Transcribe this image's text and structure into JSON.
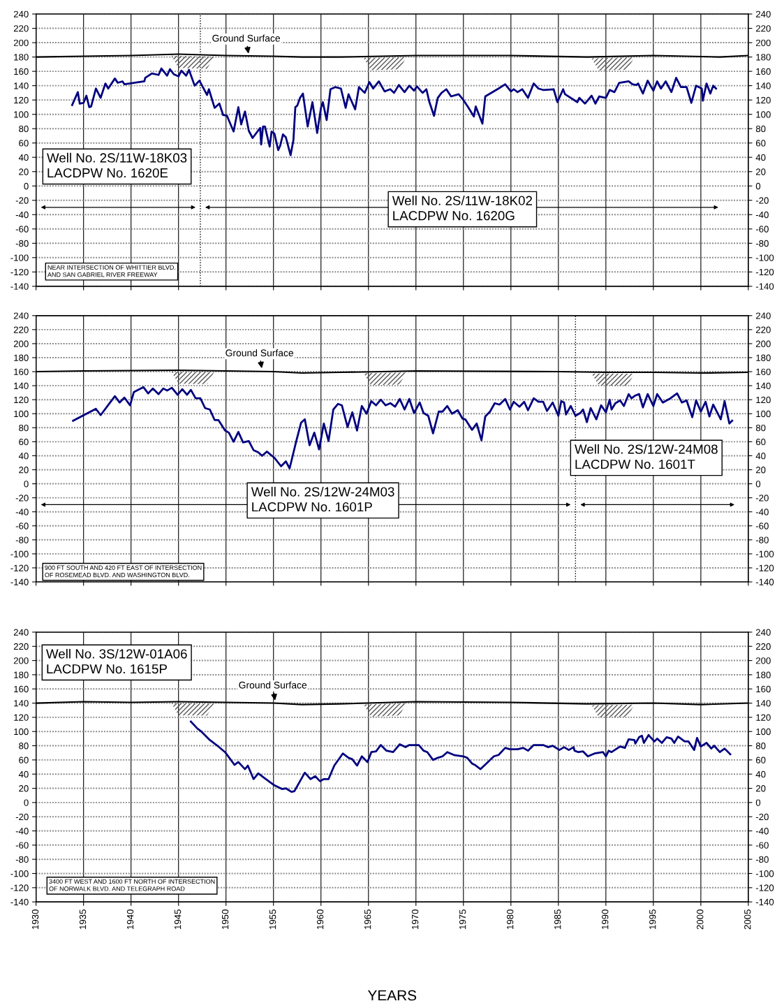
{
  "chart_data": [
    {
      "type": "line",
      "xlim": [
        1930,
        2005
      ],
      "xticks": [
        1930,
        1935,
        1940,
        1945,
        1950,
        1955,
        1960,
        1965,
        1970,
        1975,
        1980,
        1985,
        1990,
        1995,
        2000,
        2005
      ],
      "ylim": [
        -140,
        240
      ],
      "yticks": [
        -140,
        -120,
        -100,
        -80,
        -60,
        -40,
        -20,
        0,
        20,
        40,
        60,
        80,
        100,
        120,
        140,
        160,
        180,
        200,
        220,
        240
      ],
      "y2lim": [
        -140,
        240
      ],
      "y2ticks": [
        -140,
        -120,
        -100,
        -80,
        -60,
        -40,
        -20,
        0,
        20,
        40,
        60,
        80,
        100,
        120,
        140,
        160,
        180,
        200,
        220,
        240
      ],
      "grid": true,
      "tick_labels": "y",
      "marker": "none",
      "line_style": "solid",
      "series": [
        {
          "color": "#000080",
          "x": [
            1933.8,
            1934.4,
            1934.6,
            1935.0,
            1935.3,
            1935.6,
            1935.8,
            1936.3,
            1936.8,
            1937.3,
            1937.6,
            1938.3,
            1938.6,
            1939.1,
            1939.3,
            1941.4,
            1941.5,
            1942.2,
            1942.9,
            1943.2,
            1943.8,
            1944.1,
            1944.5,
            1945.0,
            1945.3,
            1945.8,
            1946.1,
            1946.7,
            1947.2,
            1948.0,
            1948.2,
            1948.8,
            1949.3,
            1949.7,
            1950.1,
            1950.8,
            1951.3,
            1951.6,
            1952.0,
            1952.4,
            1952.8,
            1953.6,
            1953.7,
            1953.9,
            1954.1,
            1954.6,
            1954.8,
            1955.1,
            1955.5,
            1955.7,
            1956.0,
            1956.3,
            1956.8,
            1957.1,
            1957.3,
            1957.5,
            1957.8,
            1958.1,
            1958.6,
            1959.1,
            1959.6,
            1960.0,
            1960.2,
            1960.6,
            1961.0,
            1961.5,
            1962.1,
            1962.6,
            1962.9,
            1963.6,
            1964.0,
            1964.6,
            1965.1,
            1965.5,
            1966.1,
            1966.7,
            1967.3,
            1967.7,
            1968.2,
            1968.8,
            1969.3,
            1969.8,
            1970.1,
            1970.7,
            1971.1,
            1971.4,
            1971.9,
            1972.3,
            1972.7,
            1973.2,
            1973.7,
            1974.5,
            1975.0,
            1975.5,
            1976.1,
            1976.3,
            1977.0,
            1977.3,
            1978.7,
            1979.4,
            1980.0,
            1980.3,
            1980.7,
            1981.2,
            1981.8,
            1982.4,
            1982.9,
            1983.4,
            1984.5,
            1984.9,
            1985.5,
            1985.7,
            1987.0,
            1987.2,
            1987.8,
            1988.5,
            1988.9,
            1989.3,
            1990.0,
            1990.4,
            1990.9,
            1991.4,
            1992.4,
            1992.8,
            1993.2,
            1993.4,
            1993.9,
            1994.4,
            1995.0,
            1995.4,
            1995.8,
            1996.3,
            1996.9,
            1997.4,
            1997.9,
            1998.5,
            1999.0,
            1999.5,
            2000.1,
            2000.2,
            2000.6,
            2001.0,
            2001.3,
            2001.6
          ],
          "values": [
            113,
            131,
            115,
            116,
            126,
            110,
            111,
            136,
            123,
            143,
            136,
            150,
            144,
            146,
            142,
            146,
            151,
            157,
            155,
            164,
            154,
            163,
            156,
            153,
            161,
            154,
            162,
            140,
            147,
            127,
            135,
            109,
            115,
            99,
            98,
            76,
            110,
            86,
            104,
            77,
            67,
            81,
            58,
            83,
            83,
            55,
            76,
            73,
            50,
            56,
            72,
            68,
            43,
            64,
            110,
            112,
            123,
            129,
            83,
            117,
            74,
            109,
            117,
            92,
            135,
            138,
            136,
            109,
            128,
            107,
            138,
            130,
            145,
            136,
            146,
            132,
            135,
            130,
            141,
            131,
            140,
            133,
            139,
            130,
            135,
            118,
            98,
            123,
            130,
            135,
            125,
            128,
            120,
            110,
            97,
            111,
            87,
            125,
            136,
            142,
            132,
            135,
            131,
            135,
            123,
            143,
            136,
            134,
            135,
            117,
            135,
            128,
            117,
            123,
            115,
            126,
            115,
            125,
            123,
            134,
            131,
            144,
            146,
            142,
            141,
            143,
            129,
            147,
            133,
            146,
            136,
            146,
            131,
            151,
            138,
            138,
            116,
            140,
            136,
            119,
            143,
            129,
            140,
            136
          ]
        },
        {
          "color": "#000000",
          "x": [
            1930,
            1935,
            1940,
            1945,
            1950,
            1955,
            1958,
            1962,
            1970,
            1980,
            1988,
            1995,
            2002,
            2005
          ],
          "values": [
            180,
            181,
            182,
            184,
            182,
            181,
            180,
            180,
            182,
            182,
            180,
            182,
            180,
            182
          ]
        }
      ],
      "ref_lines": [
        {
          "axis": "x",
          "value": 1947.3,
          "line_style": "dotted",
          "color": "#000000"
        }
      ],
      "annotations": [
        "Well No. 2S/11W-18K03\nLACDPW No. 1620E",
        "Well No. 2S/11W-18K02\nLACDPW No. 1620G",
        "NEAR INTERSECTION OF WHITTIER BLVD.\nAND SAN GABRIEL RIVER FREEWAY",
        {
          "text": "Ground Surface",
          "x": 1952.4,
          "y": 182
        }
      ]
    },
    {
      "type": "line",
      "xlim": [
        1930,
        2005
      ],
      "xticks": [
        1930,
        1935,
        1940,
        1945,
        1950,
        1955,
        1960,
        1965,
        1970,
        1975,
        1980,
        1985,
        1990,
        1995,
        2000,
        2005
      ],
      "ylim": [
        -140,
        240
      ],
      "yticks": [
        -140,
        -120,
        -100,
        -80,
        -60,
        -40,
        -20,
        0,
        20,
        40,
        60,
        80,
        100,
        120,
        140,
        160,
        180,
        200,
        220,
        240
      ],
      "y2lim": [
        -140,
        240
      ],
      "y2ticks": [
        -140,
        -120,
        -100,
        -80,
        -60,
        -40,
        -20,
        0,
        20,
        40,
        60,
        80,
        100,
        120,
        140,
        160,
        180,
        200,
        220,
        240
      ],
      "grid": true,
      "tick_labels": "y",
      "marker": "none",
      "line_style": "solid",
      "series": [
        {
          "color": "#000080",
          "x": [
            1933.9,
            1936.3,
            1936.8,
            1938.3,
            1938.8,
            1939.3,
            1939.9,
            1940.3,
            1941.3,
            1941.8,
            1942.3,
            1942.9,
            1943.4,
            1943.8,
            1944.3,
            1944.9,
            1945.4,
            1945.9,
            1946.3,
            1946.8,
            1947.3,
            1947.8,
            1948.3,
            1948.8,
            1949.2,
            1949.9,
            1950.3,
            1950.8,
            1951.3,
            1951.8,
            1952.4,
            1952.9,
            1953.4,
            1953.8,
            1954.3,
            1955.1,
            1955.8,
            1956.3,
            1956.7,
            1957.4,
            1957.9,
            1958.3,
            1958.8,
            1959.3,
            1959.8,
            1960.3,
            1960.8,
            1961.3,
            1961.8,
            1962.2,
            1962.8,
            1963.3,
            1963.8,
            1964.3,
            1964.8,
            1965.3,
            1965.8,
            1966.3,
            1966.8,
            1967.3,
            1967.8,
            1968.3,
            1968.8,
            1969.3,
            1969.8,
            1970.4,
            1970.8,
            1971.3,
            1971.8,
            1972.4,
            1972.8,
            1973.3,
            1973.8,
            1974.4,
            1974.9,
            1975.2,
            1975.9,
            1976.4,
            1976.9,
            1977.3,
            1977.8,
            1978.3,
            1978.8,
            1979.4,
            1979.9,
            1980.3,
            1980.9,
            1981.4,
            1981.8,
            1982.4,
            1982.9,
            1983.4,
            1983.8,
            1984.4,
            1985.0,
            1985.3,
            1985.6,
            1985.8,
            1986.3,
            1986.8,
            1987.3,
            1987.6,
            1988.0,
            1988.4,
            1989.0,
            1989.5,
            1990.0,
            1990.4,
            1990.6,
            1991.0,
            1991.5,
            1991.9,
            1992.4,
            1992.7,
            1993.1,
            1993.5,
            1993.9,
            1994.4,
            1995.0,
            1995.4,
            1996.0,
            1996.8,
            1997.5,
            1998.0,
            1998.5,
            1999.1,
            1999.5,
            2000.0,
            2000.5,
            2000.9,
            2001.3,
            2002.1,
            2002.5,
            2003.0,
            2003.3
          ],
          "values": [
            90,
            107,
            98,
            125,
            116,
            123,
            112,
            131,
            138,
            129,
            136,
            128,
            136,
            133,
            137,
            127,
            135,
            127,
            134,
            122,
            122,
            108,
            106,
            91,
            91,
            76,
            73,
            60,
            74,
            59,
            61,
            48,
            45,
            40,
            46,
            37,
            25,
            32,
            22,
            61,
            87,
            92,
            55,
            73,
            49,
            86,
            61,
            106,
            114,
            112,
            81,
            102,
            76,
            111,
            100,
            118,
            112,
            120,
            112,
            115,
            110,
            121,
            106,
            121,
            101,
            116,
            101,
            97,
            72,
            103,
            103,
            111,
            100,
            105,
            93,
            92,
            77,
            86,
            62,
            96,
            103,
            115,
            113,
            121,
            106,
            117,
            110,
            117,
            105,
            122,
            117,
            117,
            104,
            116,
            97,
            118,
            116,
            99,
            111,
            97,
            101,
            106,
            88,
            108,
            92,
            112,
            102,
            120,
            106,
            115,
            119,
            111,
            128,
            122,
            126,
            128,
            109,
            128,
            111,
            128,
            116,
            122,
            129,
            116,
            119,
            95,
            119,
            103,
            117,
            96,
            113,
            92,
            118,
            86,
            90
          ]
        },
        {
          "color": "#000000",
          "x": [
            1930,
            1935,
            1945,
            1950,
            1955,
            1958,
            1962,
            1970,
            1985,
            1990,
            1995,
            2000,
            2005
          ],
          "values": [
            160,
            161,
            162,
            161,
            160,
            158,
            159,
            161,
            160,
            159,
            159,
            158,
            159
          ]
        }
      ],
      "ref_lines": [
        {
          "axis": "x",
          "value": 1986.8,
          "line_style": "dotted",
          "color": "#000000"
        }
      ],
      "annotations": [
        "Well No. 2S/12W-24M08\nLACDPW No. 1601T",
        "Well No. 2S/12W-24M03\nLACDPW No. 1601P",
        "900 FT SOUTH AND 420 FT EAST OF INTERSECTION\nOF ROSEMEAD BLVD. AND WASHINGTON BLVD.",
        {
          "text": "Ground Surface",
          "x": 1953.8,
          "y": 162
        }
      ]
    },
    {
      "type": "line",
      "xlabel": "YEARS",
      "xlim": [
        1930,
        2005
      ],
      "xticks": [
        1930,
        1935,
        1940,
        1945,
        1950,
        1955,
        1960,
        1965,
        1970,
        1975,
        1980,
        1985,
        1990,
        1995,
        2000,
        2005
      ],
      "ylim": [
        -140,
        240
      ],
      "yticks": [
        -140,
        -120,
        -100,
        -80,
        -60,
        -40,
        -20,
        0,
        20,
        40,
        60,
        80,
        100,
        120,
        140,
        160,
        180,
        200,
        220,
        240
      ],
      "y2lim": [
        -140,
        240
      ],
      "y2ticks": [
        -140,
        -120,
        -100,
        -80,
        -60,
        -40,
        -20,
        0,
        20,
        40,
        60,
        80,
        100,
        120,
        140,
        160,
        180,
        200,
        220,
        240
      ],
      "grid": true,
      "marker": "none",
      "line_style": "solid",
      "series": [
        {
          "color": "#000080",
          "x": [
            1946.3,
            1947.0,
            1947.4,
            1948.3,
            1949.0,
            1949.9,
            1950.9,
            1951.3,
            1952.0,
            1952.3,
            1952.9,
            1953.4,
            1954.0,
            1955.0,
            1955.9,
            1956.3,
            1956.9,
            1957.2,
            1958.3,
            1958.9,
            1959.4,
            1959.9,
            1960.3,
            1960.8,
            1961.4,
            1962.3,
            1962.9,
            1963.3,
            1963.8,
            1964.3,
            1964.9,
            1965.3,
            1965.8,
            1966.3,
            1966.9,
            1967.6,
            1968.3,
            1968.9,
            1969.3,
            1970.3,
            1970.8,
            1971.2,
            1971.8,
            1972.3,
            1972.8,
            1973.3,
            1974.0,
            1975.0,
            1975.4,
            1975.9,
            1976.2,
            1976.8,
            1977.5,
            1978.2,
            1978.7,
            1979.4,
            1979.9,
            1980.7,
            1981.3,
            1981.8,
            1982.4,
            1983.4,
            1983.9,
            1984.4,
            1985.1,
            1985.6,
            1986.1,
            1986.6,
            1986.7,
            1987.1,
            1987.6,
            1988.1,
            1988.8,
            1989.7,
            1990.0,
            1990.3,
            1990.6,
            1991.5,
            1992.0,
            1992.4,
            1993.0,
            1993.1,
            1993.5,
            1993.8,
            1994.0,
            1994.5,
            1995.1,
            1995.4,
            1995.9,
            1996.4,
            1996.9,
            1997.2,
            1997.6,
            1998.3,
            1998.7,
            1999.3,
            1999.6,
            2000.0,
            2000.6,
            2001.1,
            2001.4,
            2002.0,
            2002.5,
            2003.1
          ],
          "values": [
            114,
            104,
            100,
            88,
            81,
            71,
            53,
            57,
            47,
            52,
            33,
            41,
            35,
            25,
            19,
            20,
            15,
            16,
            42,
            33,
            37,
            30,
            33,
            33,
            52,
            69,
            63,
            61,
            52,
            65,
            57,
            71,
            72,
            81,
            73,
            71,
            82,
            78,
            81,
            81,
            73,
            71,
            60,
            63,
            65,
            71,
            67,
            65,
            63,
            55,
            53,
            47,
            56,
            65,
            67,
            77,
            75,
            75,
            77,
            73,
            81,
            81,
            78,
            80,
            74,
            78,
            74,
            78,
            73,
            71,
            72,
            65,
            69,
            71,
            65,
            73,
            71,
            79,
            77,
            89,
            88,
            83,
            92,
            94,
            84,
            95,
            86,
            90,
            84,
            92,
            90,
            84,
            93,
            86,
            86,
            74,
            91,
            79,
            84,
            76,
            80,
            71,
            76,
            68
          ]
        },
        {
          "color": "#000000",
          "x": [
            1930,
            1935,
            1940,
            1945,
            1950,
            1955,
            1958,
            1962,
            1970,
            1980,
            1988,
            1995,
            2000,
            2005
          ],
          "values": [
            140,
            142,
            141,
            142,
            141,
            140,
            138,
            139,
            142,
            141,
            139,
            140,
            138,
            140
          ]
        }
      ],
      "annotations": [
        "Well No. 3S/12W-01A06\nLACDPW No. 1615P",
        "3400 FT WEST AND 1600 FT NORTH OF INTERSECTION\nOF NORWALK BLVD. AND TELEGRAPH ROAD",
        {
          "text": "Ground Surface",
          "x": 1955.2,
          "y": 141
        }
      ]
    }
  ]
}
